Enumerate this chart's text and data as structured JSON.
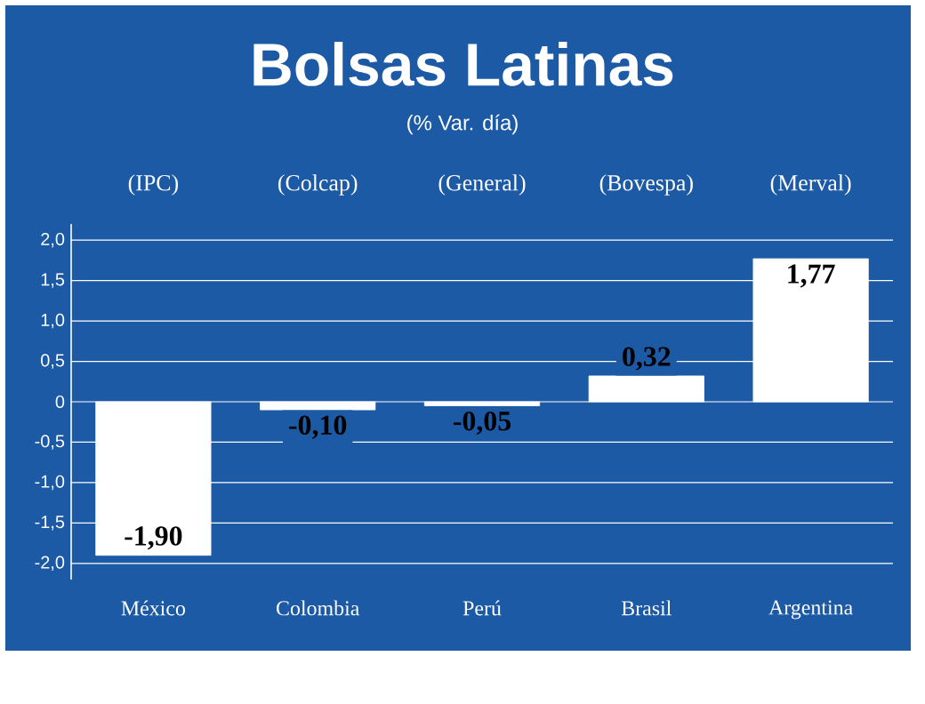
{
  "chart_data": {
    "type": "bar",
    "title": "Bolsas Latinas",
    "subtitle": "(% Var. día)",
    "categories": [
      "México",
      "Colombia",
      "Perú",
      "Brasil",
      "Argentina"
    ],
    "values": [
      -1.9,
      -0.1,
      -0.05,
      0.32,
      1.77
    ],
    "value_labels": [
      "-1,90",
      "-0,10",
      "-0,05",
      "0,32",
      "1,77"
    ],
    "color": "#ffffff",
    "ylim": [
      -2.2,
      2.2
    ],
    "yticks": [
      {
        "value": -2,
        "label": "-2,0"
      },
      {
        "value": -1.5,
        "label": "-1,5"
      },
      {
        "value": -1,
        "label": "-1,0"
      },
      {
        "value": -0.5,
        "label": "-0,5"
      },
      {
        "value": 0,
        "label": "0"
      },
      {
        "value": 0.5,
        "label": "0,5"
      },
      {
        "value": 1,
        "label": "1,0"
      },
      {
        "value": 1.5,
        "label": "1,5"
      },
      {
        "value": 2,
        "label": "2,0"
      }
    ],
    "grid": "y",
    "annotations": [
      "(IPC)",
      "(Colcap)",
      "(General)",
      "(Bovespa)",
      "(Merval)"
    ]
  }
}
